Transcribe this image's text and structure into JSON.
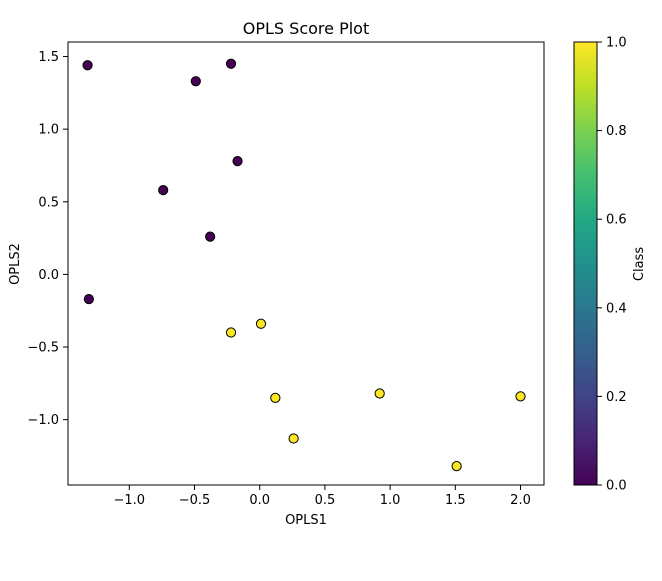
{
  "chart_data": {
    "type": "scatter",
    "title": "OPLS Score Plot",
    "xlabel": "OPLS1",
    "ylabel": "OPLS2",
    "xlim": [
      -1.47,
      2.18
    ],
    "ylim": [
      -1.45,
      1.6
    ],
    "xticks": [
      -1.0,
      -0.5,
      0.0,
      0.5,
      1.0,
      1.5,
      2.0
    ],
    "xtick_labels": [
      "−1.0",
      "−0.5",
      "0.0",
      "0.5",
      "1.0",
      "1.5",
      "2.0"
    ],
    "yticks": [
      1.5,
      1.0,
      0.5,
      0.0,
      -0.5,
      -1.0
    ],
    "ytick_labels": [
      "1.5",
      "1.0",
      "0.5",
      "0.0",
      "−0.5",
      "−1.0"
    ],
    "grid": false,
    "colormap": "viridis",
    "colorbar": {
      "label": "Class",
      "range": [
        0.0,
        1.0
      ],
      "ticks": [
        0.0,
        0.2,
        0.4,
        0.6,
        0.8,
        1.0
      ],
      "tick_labels": [
        "0.0",
        "0.2",
        "0.4",
        "0.6",
        "0.8",
        "1.0"
      ]
    },
    "points": [
      {
        "x": -1.32,
        "y": 1.44,
        "class": 0
      },
      {
        "x": -0.49,
        "y": 1.33,
        "class": 0
      },
      {
        "x": -0.22,
        "y": 1.45,
        "class": 0
      },
      {
        "x": -0.17,
        "y": 0.78,
        "class": 0
      },
      {
        "x": -0.74,
        "y": 0.58,
        "class": 0
      },
      {
        "x": -0.38,
        "y": 0.26,
        "class": 0
      },
      {
        "x": -1.31,
        "y": -0.17,
        "class": 0
      },
      {
        "x": 0.01,
        "y": -0.34,
        "class": 1
      },
      {
        "x": -0.22,
        "y": -0.4,
        "class": 1
      },
      {
        "x": 0.12,
        "y": -0.85,
        "class": 1
      },
      {
        "x": 0.92,
        "y": -0.82,
        "class": 1
      },
      {
        "x": 2.0,
        "y": -0.84,
        "class": 1
      },
      {
        "x": 0.26,
        "y": -1.13,
        "class": 1
      },
      {
        "x": 1.51,
        "y": -1.32,
        "class": 1
      }
    ]
  }
}
